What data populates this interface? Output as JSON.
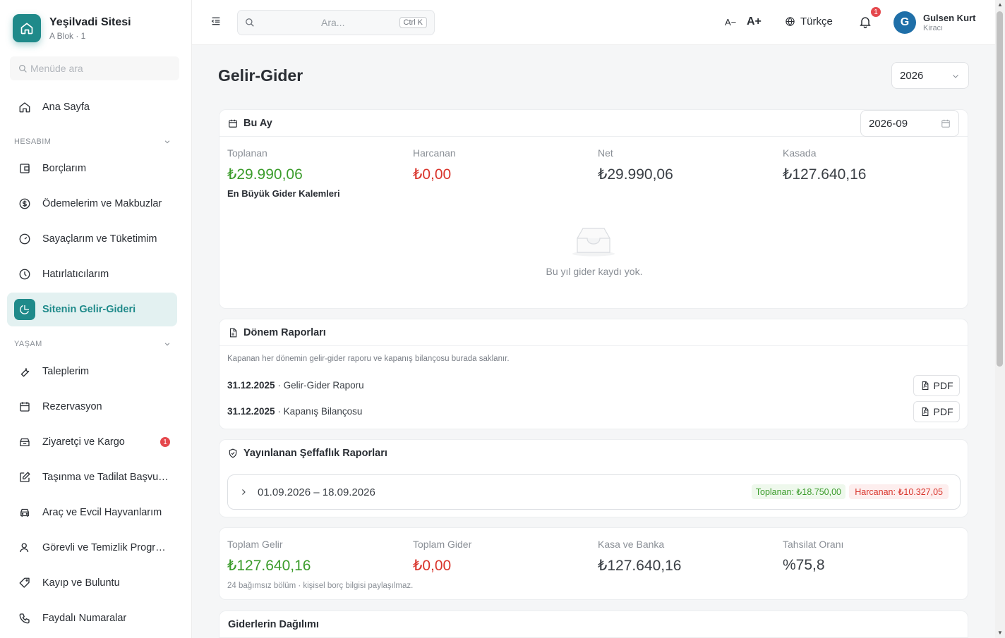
{
  "brand": {
    "title": "Yeşilvadi Sitesi",
    "subtitle": "A Blok · 1"
  },
  "sidebar": {
    "search_placeholder": "Menüde ara",
    "home": "Ana Sayfa",
    "section_account": "HESABIM",
    "account_items": [
      {
        "label": "Borçlarım",
        "icon": "wallet-icon"
      },
      {
        "label": "Ödemelerim ve Makbuzlar",
        "icon": "dollar-circle-icon"
      },
      {
        "label": "Sayaçlarım ve Tüketimim",
        "icon": "gauge-icon"
      },
      {
        "label": "Hatırlatıcılarım",
        "icon": "clock-icon"
      },
      {
        "label": "Sitenin Gelir-Gideri",
        "icon": "pie-chart-icon",
        "active": true
      }
    ],
    "section_life": "YAŞAM",
    "life_items": [
      {
        "label": "Taleplerim",
        "icon": "wrench-icon"
      },
      {
        "label": "Rezervasyon",
        "icon": "calendar-icon"
      },
      {
        "label": "Ziyaretçi ve Kargo",
        "icon": "package-icon",
        "badge": "1"
      },
      {
        "label": "Taşınma ve Tadilat Başvuruları",
        "icon": "edit-icon"
      },
      {
        "label": "Araç ve Evcil Hayvanlarım",
        "icon": "car-icon"
      },
      {
        "label": "Görevli ve Temizlik Programı",
        "icon": "user-icon"
      },
      {
        "label": "Kayıp ve Buluntu",
        "icon": "tag-icon"
      },
      {
        "label": "Faydalı Numaralar",
        "icon": "phone-icon"
      }
    ]
  },
  "topbar": {
    "search_placeholder": "Ara...",
    "shortcut": "Ctrl K",
    "font_decrease": "A−",
    "font_increase": "A+",
    "language": "Türkçe",
    "notification_count": "1",
    "user_initial": "G",
    "user_name": "Gulsen Kurt",
    "user_role": "Kiracı"
  },
  "page": {
    "title": "Gelir-Gider",
    "year": "2026"
  },
  "this_month": {
    "title": "Bu Ay",
    "month": "2026-09",
    "stats": [
      {
        "label": "Toplanan",
        "value": "₺29.990,06",
        "color": "#3b9c2b"
      },
      {
        "label": "Harcanan",
        "value": "₺0,00",
        "color": "#d9342b"
      },
      {
        "label": "Net",
        "value": "₺29.990,06",
        "color": "#3a3f45"
      },
      {
        "label": "Kasada",
        "value": "₺127.640,16",
        "color": "#3a3f45"
      }
    ],
    "top_expenses_title": "En Büyük Gider Kalemleri",
    "empty_text": "Bu yıl gider kaydı yok."
  },
  "period_reports": {
    "title": "Dönem Raporları",
    "description": "Kapanan her dönemin gelir-gider raporu ve kapanış bilançosu burada saklanır.",
    "rows": [
      {
        "date": "31.12.2025",
        "name": " · Gelir-Gider Raporu",
        "button": "PDF"
      },
      {
        "date": "31.12.2025",
        "name": " · Kapanış Bilançosu",
        "button": "PDF"
      }
    ]
  },
  "transparency": {
    "title": "Yayınlanan Şeffaflık Raporları",
    "range": "01.09.2026 – 18.09.2026",
    "collected": "Toplanan: ₺18.750,00",
    "spent": "Harcanan: ₺10.327,05"
  },
  "totals": {
    "stats": [
      {
        "label": "Toplam Gelir",
        "value": "₺127.640,16",
        "color": "#3b9c2b"
      },
      {
        "label": "Toplam Gider",
        "value": "₺0,00",
        "color": "#d9342b"
      },
      {
        "label": "Kasa ve Banka",
        "value": "₺127.640,16",
        "color": "#3a3f45"
      },
      {
        "label": "Tahsilat Oranı",
        "value": "%75,8",
        "color": "#3a3f45"
      }
    ],
    "footnote": "24 bağımsız bölüm · kişisel borç bilgisi paylaşılmaz."
  },
  "distribution": {
    "title": "Giderlerin Dağılımı"
  }
}
